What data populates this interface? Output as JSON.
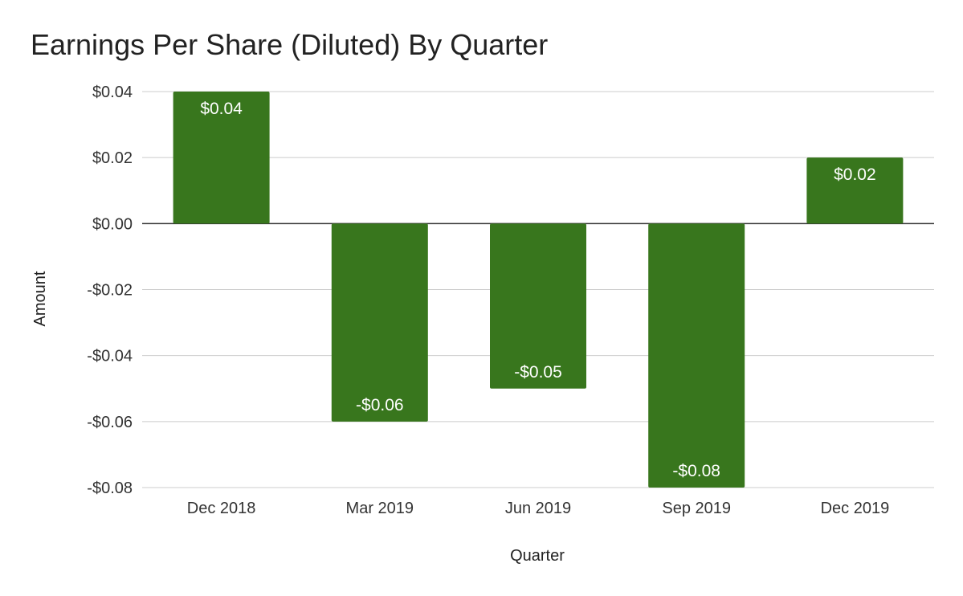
{
  "chart_data": {
    "type": "bar",
    "title": "Earnings Per Share (Diluted) By Quarter",
    "xlabel": "Quarter",
    "ylabel": "Amount",
    "categories": [
      "Dec 2018",
      "Mar 2019",
      "Jun 2019",
      "Sep 2019",
      "Dec 2019"
    ],
    "values": [
      0.04,
      -0.06,
      -0.05,
      -0.08,
      0.02
    ],
    "data_labels": [
      "$0.04",
      "-$0.06",
      "-$0.05",
      "-$0.08",
      "$0.02"
    ],
    "ylim": [
      -0.08,
      0.04
    ],
    "yticks": [
      0.04,
      0.02,
      0.0,
      -0.02,
      -0.04,
      -0.06,
      -0.08
    ],
    "ytick_labels": [
      "$0.04",
      "$0.02",
      "$0.00",
      "-$0.02",
      "-$0.04",
      "-$0.06",
      "-$0.08"
    ],
    "grid": true,
    "legend": "none",
    "bar_color": "#38761d"
  }
}
